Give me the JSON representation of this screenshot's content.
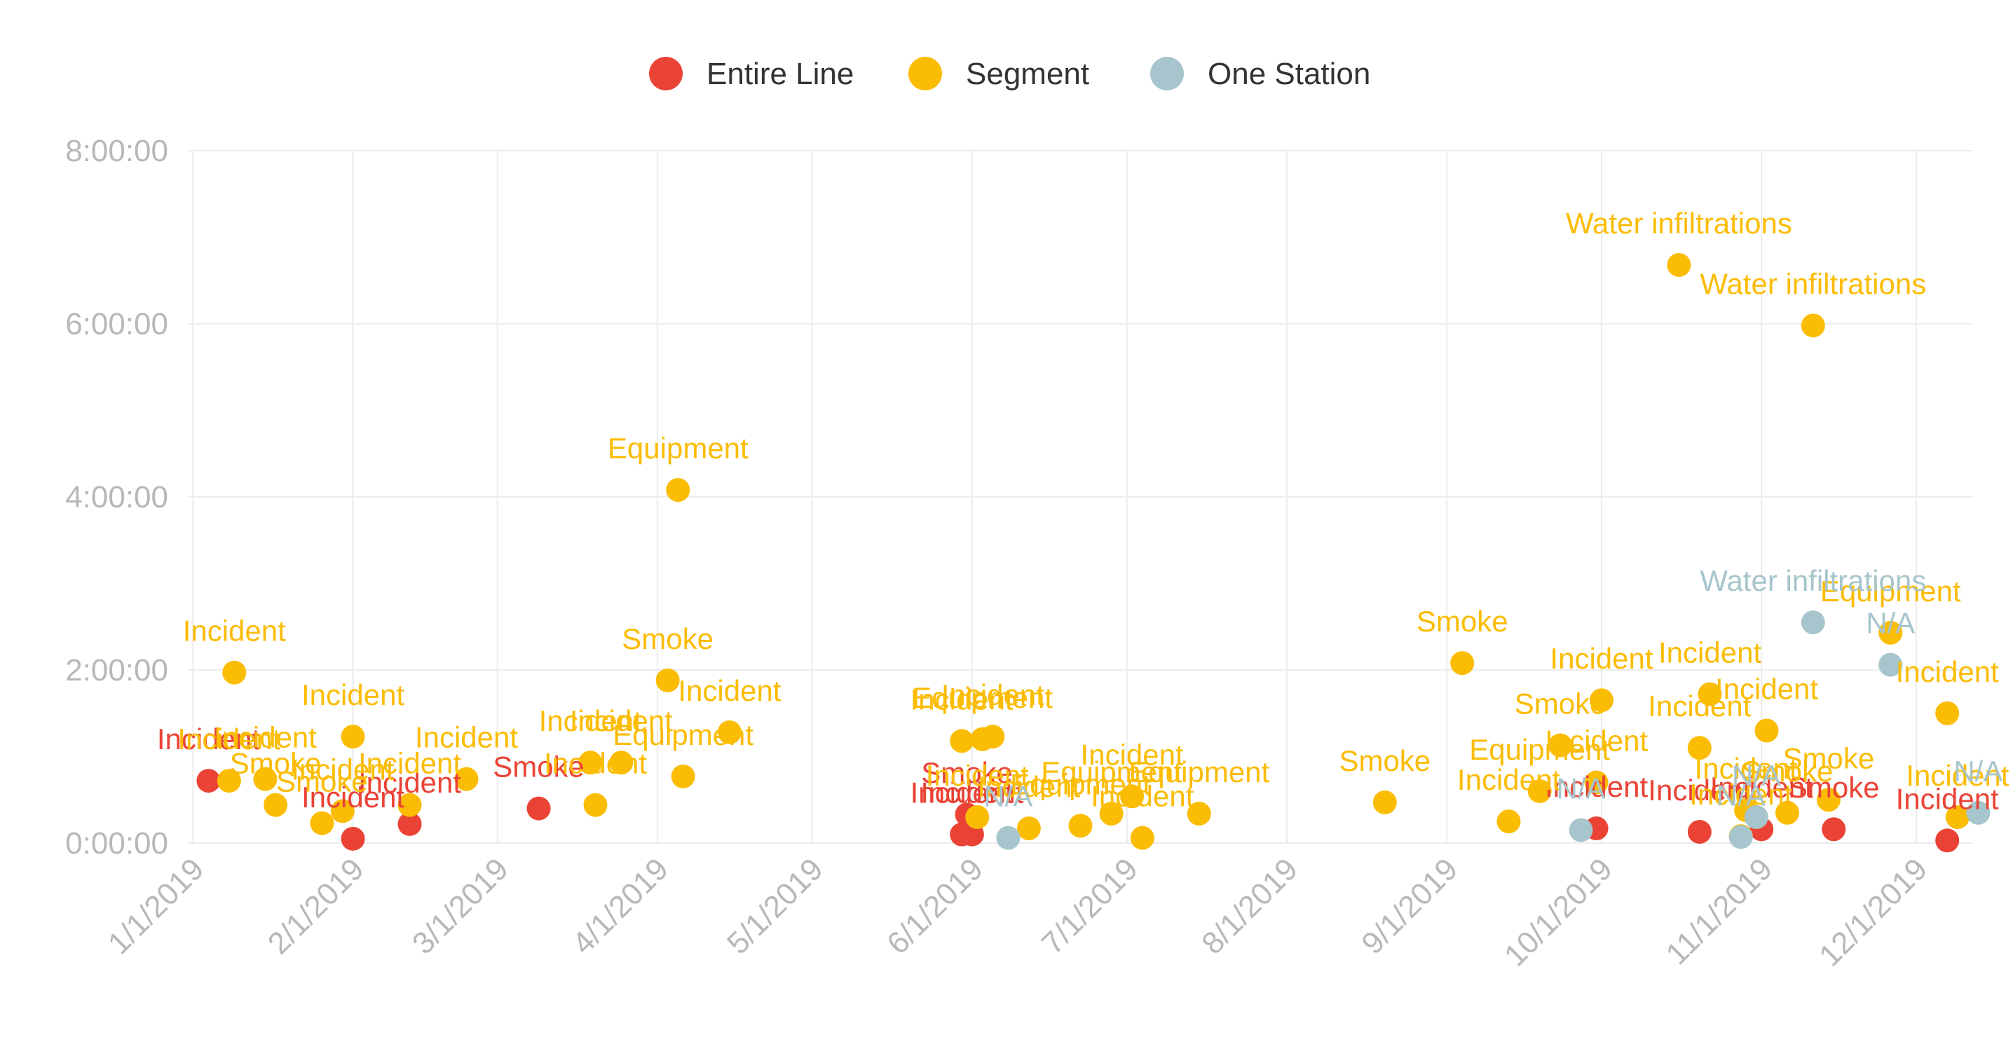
{
  "chart_data": {
    "type": "scatter",
    "title": "",
    "xlabel": "",
    "ylabel": "",
    "x_axis": {
      "type": "date",
      "range": [
        "2018-12-31",
        "2019-12-12"
      ],
      "ticks": [
        "2019-01-01",
        "2019-02-01",
        "2019-03-01",
        "2019-04-01",
        "2019-05-01",
        "2019-06-01",
        "2019-07-01",
        "2019-08-01",
        "2019-09-01",
        "2019-10-01",
        "2019-11-01",
        "2019-12-01"
      ],
      "tick_labels": [
        "1/1/2019",
        "2/1/2019",
        "3/1/2019",
        "4/1/2019",
        "5/1/2019",
        "6/1/2019",
        "7/1/2019",
        "8/1/2019",
        "9/1/2019",
        "10/1/2019",
        "11/1/2019",
        "12/1/2019"
      ]
    },
    "y_axis": {
      "unit": "hours",
      "range": [
        0,
        8
      ],
      "ticks": [
        0,
        2,
        4,
        6,
        8
      ],
      "tick_labels": [
        "0:00:00",
        "2:00:00",
        "4:00:00",
        "6:00:00",
        "8:00:00"
      ]
    },
    "grid": true,
    "legend_position": "top-center",
    "series": [
      {
        "name": "Entire Line",
        "color": "#ea4335",
        "points": [
          {
            "x": "2019-01-04",
            "y": 0.72,
            "label": "Incident"
          },
          {
            "x": "2019-02-01",
            "y": 0.05,
            "label": "Incident"
          },
          {
            "x": "2019-02-12",
            "y": 0.22,
            "label": "Incident"
          },
          {
            "x": "2019-03-09",
            "y": 0.4,
            "label": "Smoke"
          },
          {
            "x": "2019-05-30",
            "y": 0.1,
            "label": "Incident"
          },
          {
            "x": "2019-05-31",
            "y": 0.33,
            "label": "Smoke"
          },
          {
            "x": "2019-06-01",
            "y": 0.1,
            "label": "Incident"
          },
          {
            "x": "2019-09-30",
            "y": 0.17,
            "label": "Incident"
          },
          {
            "x": "2019-10-20",
            "y": 0.13,
            "label": "Incident"
          },
          {
            "x": "2019-11-01",
            "y": 0.16,
            "label": "Incident"
          },
          {
            "x": "2019-11-15",
            "y": 0.16,
            "label": "Smoke"
          },
          {
            "x": "2019-12-07",
            "y": 0.03,
            "label": "Incident"
          }
        ]
      },
      {
        "name": "Segment",
        "color": "#fbbc04",
        "points": [
          {
            "x": "2019-01-08",
            "y": 0.72,
            "label": "Incident"
          },
          {
            "x": "2019-01-09",
            "y": 1.97,
            "label": "Incident"
          },
          {
            "x": "2019-01-15",
            "y": 0.74,
            "label": "Incident"
          },
          {
            "x": "2019-01-17",
            "y": 0.44,
            "label": "Smoke"
          },
          {
            "x": "2019-01-26",
            "y": 0.23,
            "label": "Smoke"
          },
          {
            "x": "2019-01-30",
            "y": 0.37,
            "label": "Incident"
          },
          {
            "x": "2019-02-01",
            "y": 1.23,
            "label": "Incident"
          },
          {
            "x": "2019-02-12",
            "y": 0.44,
            "label": "Incident"
          },
          {
            "x": "2019-02-23",
            "y": 0.74,
            "label": "Incident"
          },
          {
            "x": "2019-03-19",
            "y": 0.93,
            "label": "Incident"
          },
          {
            "x": "2019-03-20",
            "y": 0.44,
            "label": "Incident"
          },
          {
            "x": "2019-03-25",
            "y": 0.93,
            "label": "Incident"
          },
          {
            "x": "2019-04-03",
            "y": 1.88,
            "label": "Smoke"
          },
          {
            "x": "2019-04-05",
            "y": 4.08,
            "label": "Equipment"
          },
          {
            "x": "2019-04-06",
            "y": 0.77,
            "label": "Equipment"
          },
          {
            "x": "2019-04-15",
            "y": 1.28,
            "label": "Incident"
          },
          {
            "x": "2019-05-30",
            "y": 1.18,
            "label": "Incident"
          },
          {
            "x": "2019-06-02",
            "y": 0.3,
            "label": "Incident"
          },
          {
            "x": "2019-06-03",
            "y": 1.2,
            "label": "Equipment"
          },
          {
            "x": "2019-06-05",
            "y": 1.23,
            "label": "Incident"
          },
          {
            "x": "2019-06-12",
            "y": 0.17,
            "label": "Incident"
          },
          {
            "x": "2019-06-22",
            "y": 0.2,
            "label": "Equipment"
          },
          {
            "x": "2019-06-28",
            "y": 0.34,
            "label": "Equipment"
          },
          {
            "x": "2019-07-02",
            "y": 0.54,
            "label": "Incident"
          },
          {
            "x": "2019-07-04",
            "y": 0.06,
            "label": "Incident"
          },
          {
            "x": "2019-07-15",
            "y": 0.34,
            "label": "Equipment"
          },
          {
            "x": "2019-08-20",
            "y": 0.47,
            "label": "Smoke"
          },
          {
            "x": "2019-09-04",
            "y": 2.08,
            "label": "Smoke"
          },
          {
            "x": "2019-09-13",
            "y": 0.25,
            "label": "Incident"
          },
          {
            "x": "2019-09-19",
            "y": 0.6,
            "label": "Equipment"
          },
          {
            "x": "2019-09-23",
            "y": 1.13,
            "label": "Smoke"
          },
          {
            "x": "2019-09-30",
            "y": 0.7,
            "label": "Incident"
          },
          {
            "x": "2019-10-01",
            "y": 1.65,
            "label": "Incident"
          },
          {
            "x": "2019-10-16",
            "y": 6.68,
            "label": "Water infiltrations"
          },
          {
            "x": "2019-10-20",
            "y": 1.1,
            "label": "Incident"
          },
          {
            "x": "2019-10-22",
            "y": 1.72,
            "label": "Incident"
          },
          {
            "x": "2019-10-28",
            "y": 0.08,
            "label": "Incident"
          },
          {
            "x": "2019-10-29",
            "y": 0.38,
            "label": "Incident"
          },
          {
            "x": "2019-11-02",
            "y": 1.3,
            "label": "Incident"
          },
          {
            "x": "2019-11-06",
            "y": 0.35,
            "label": "Smoke"
          },
          {
            "x": "2019-11-11",
            "y": 5.98,
            "label": "Water infiltrations"
          },
          {
            "x": "2019-11-14",
            "y": 0.5,
            "label": "Smoke"
          },
          {
            "x": "2019-11-26",
            "y": 2.43,
            "label": "Equipment"
          },
          {
            "x": "2019-12-07",
            "y": 1.5,
            "label": "Incident"
          },
          {
            "x": "2019-12-09",
            "y": 0.3,
            "label": "Incident"
          }
        ]
      },
      {
        "name": "One Station",
        "color": "#a7c5cc",
        "points": [
          {
            "x": "2019-06-08",
            "y": 0.06,
            "label": "N/A"
          },
          {
            "x": "2019-09-27",
            "y": 0.15,
            "label": "N/A"
          },
          {
            "x": "2019-10-28",
            "y": 0.07,
            "label": "N/A"
          },
          {
            "x": "2019-10-31",
            "y": 0.3,
            "label": "N/A"
          },
          {
            "x": "2019-11-11",
            "y": 2.55,
            "label": "Water infiltrations"
          },
          {
            "x": "2019-11-26",
            "y": 2.06,
            "label": "N/A"
          },
          {
            "x": "2019-12-13",
            "y": 0.35,
            "label": "N/A"
          }
        ]
      }
    ]
  }
}
